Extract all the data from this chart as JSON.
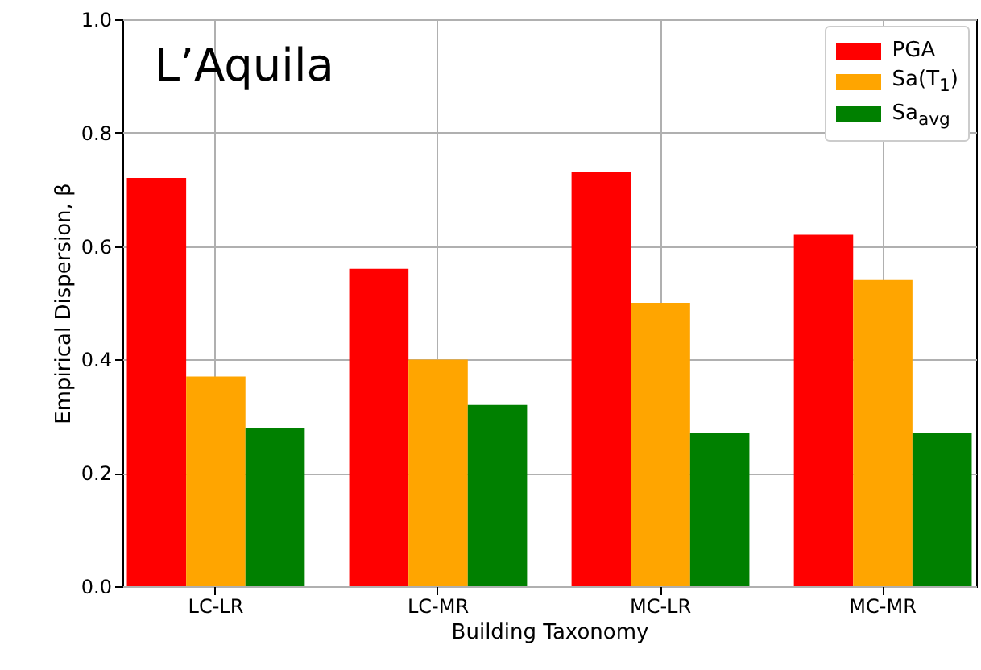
{
  "chart_data": {
    "type": "bar",
    "xlabel": "Building Taxonomy",
    "ylabel": "Empirical Dispersion, β",
    "annotations": [
      "L’Aquila"
    ],
    "categories": [
      "LC-LR",
      "LC-MR",
      "MC-LR",
      "MC-MR"
    ],
    "series": [
      {
        "name": "PGA",
        "color": "#ff0000",
        "values": [
          0.72,
          0.56,
          0.73,
          0.62
        ]
      },
      {
        "name": "Sa(T$_{1}$)",
        "color": "#ffa500",
        "values": [
          0.37,
          0.4,
          0.5,
          0.54
        ]
      },
      {
        "name": "Sa$_{avg}$",
        "color": "#008000",
        "values": [
          0.28,
          0.32,
          0.27,
          0.27
        ]
      }
    ],
    "ylim": [
      0,
      1
    ],
    "yticks": [
      {
        "value": 0,
        "label": "0.0"
      },
      {
        "value": 0.2,
        "label": "0.2"
      },
      {
        "value": 0.4,
        "label": "0.4"
      },
      {
        "value": 0.6,
        "label": "0.6"
      },
      {
        "value": 0.8,
        "label": "0.8"
      },
      {
        "value": 1,
        "label": "1.0"
      }
    ],
    "grid": true,
    "legend": "top right"
  }
}
